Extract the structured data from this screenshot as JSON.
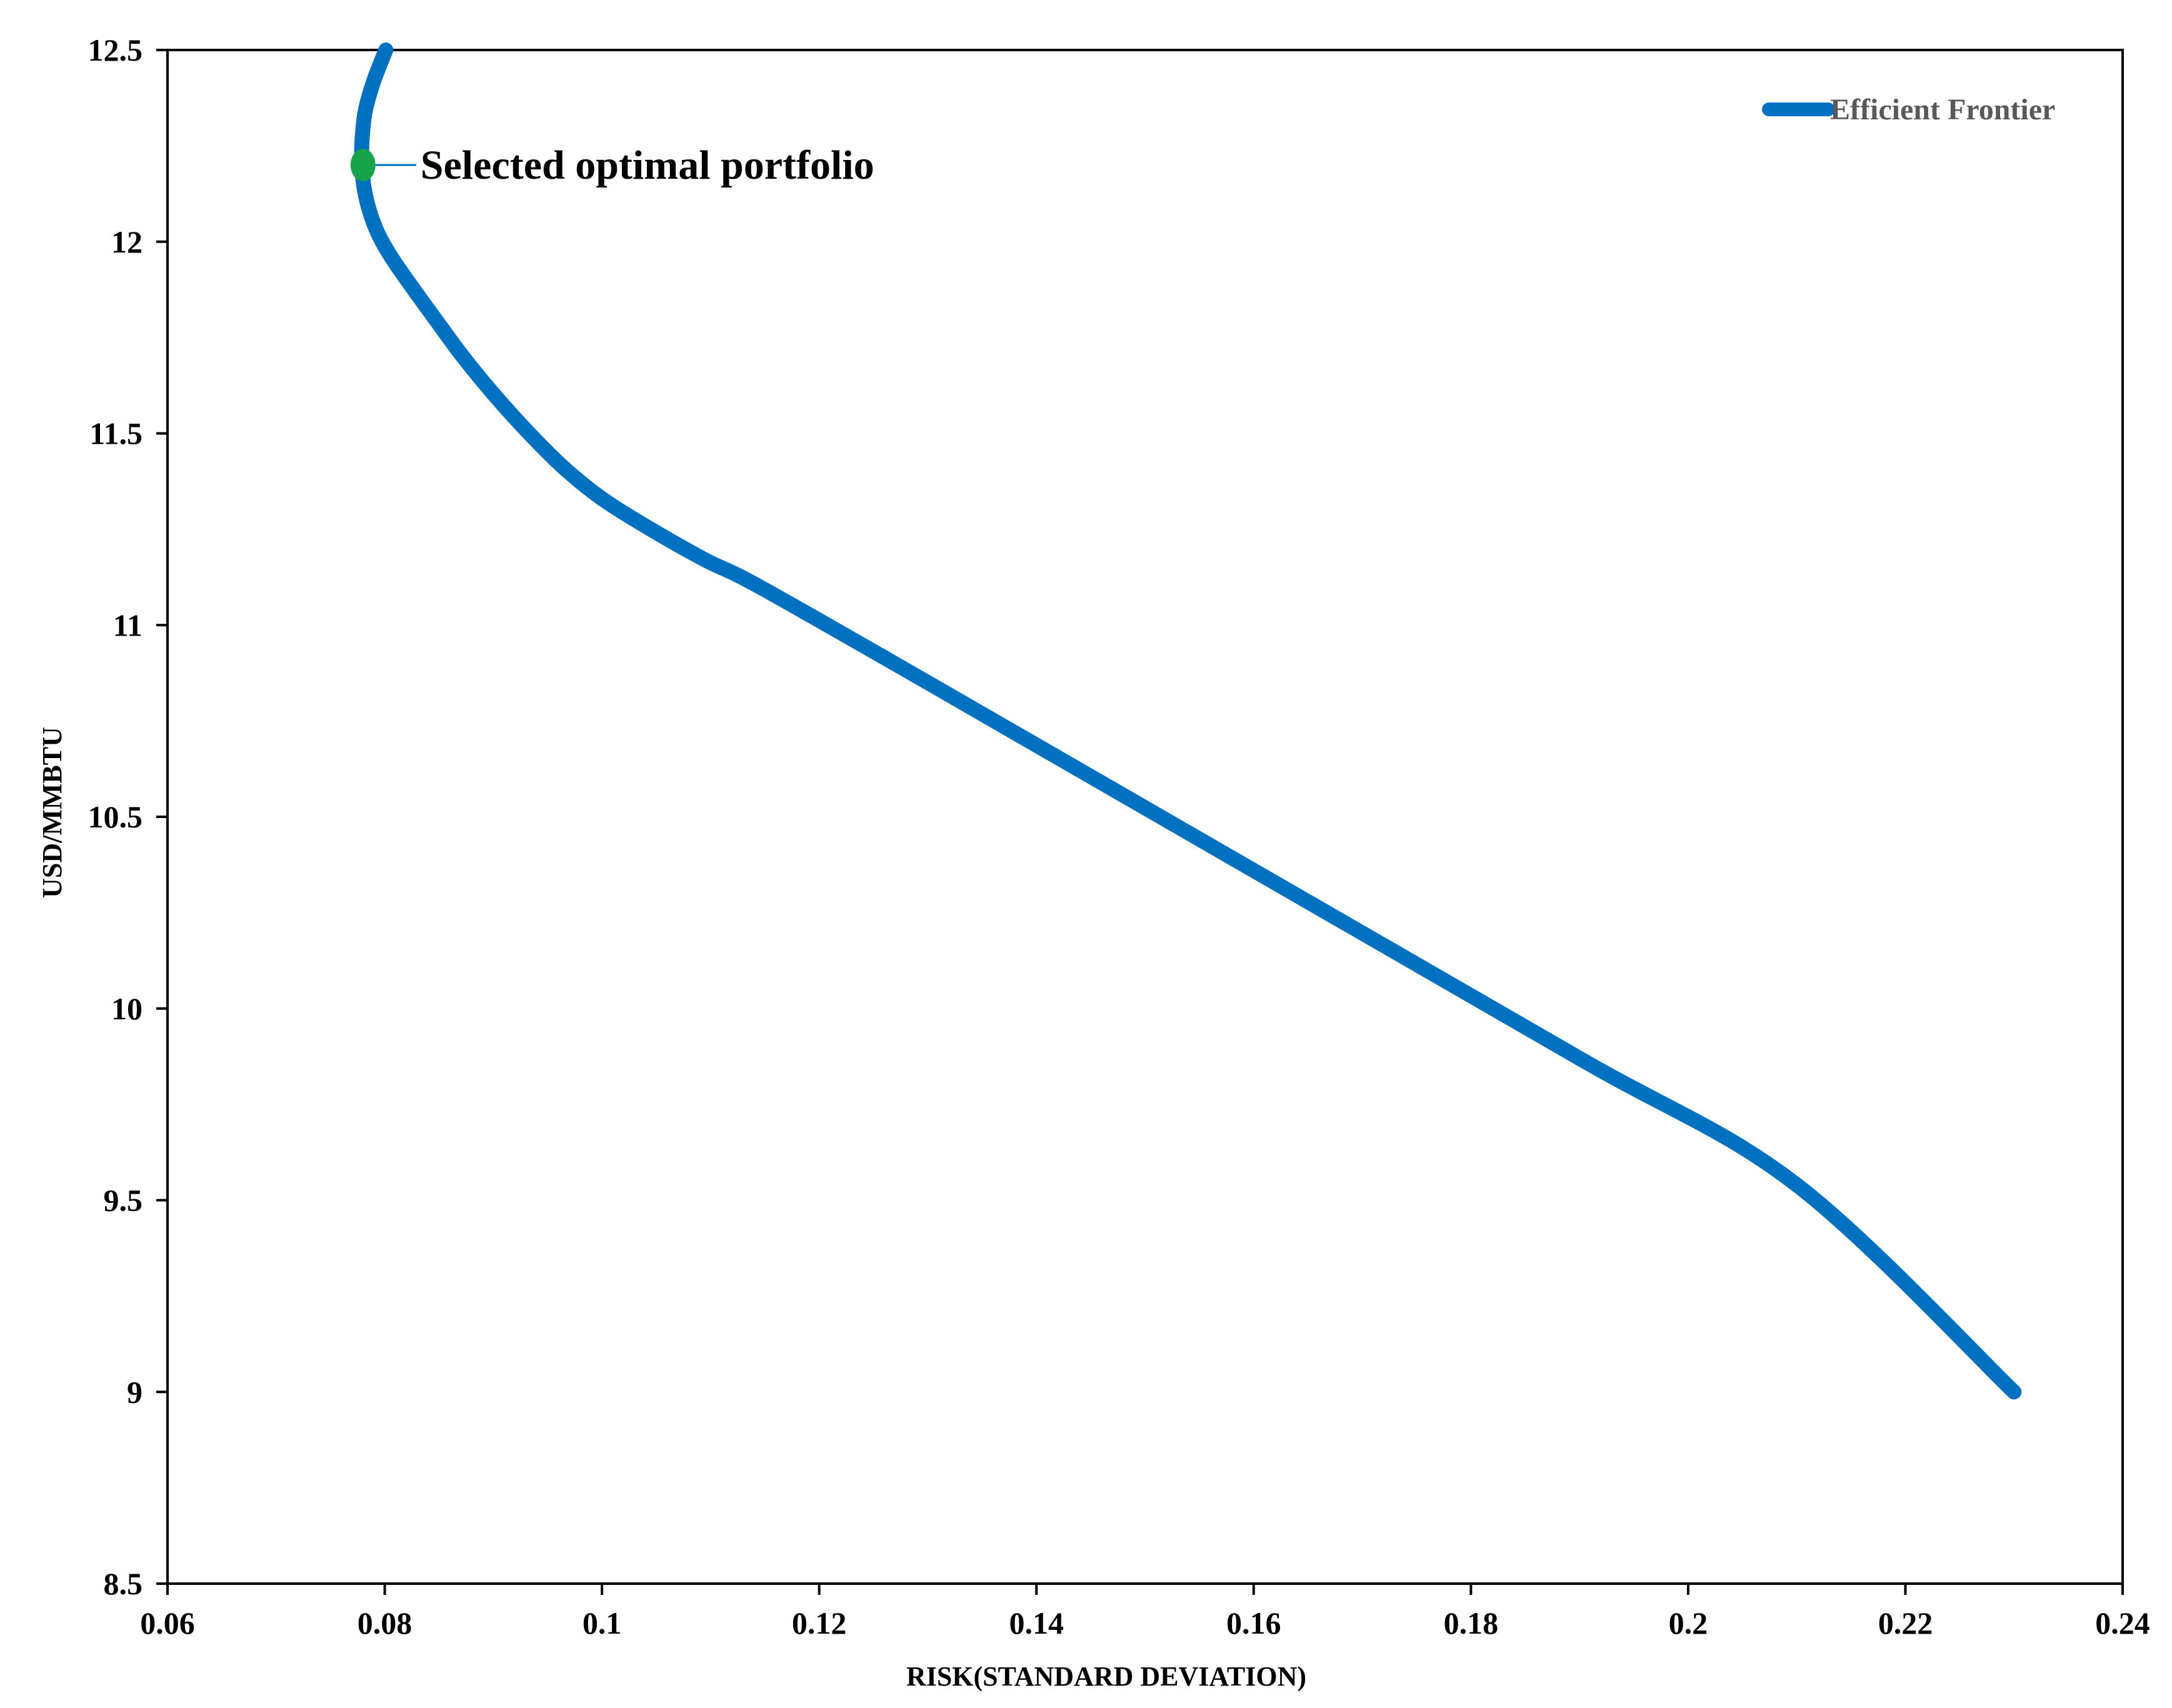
{
  "chart_data": {
    "type": "line",
    "title": "",
    "xlabel": "RISK(STANDARD DEVIATION)",
    "ylabel": "USD/MMBTU",
    "xlim": [
      0.06,
      0.24
    ],
    "ylim": [
      8.5,
      12.5
    ],
    "x_ticks": [
      0.06,
      0.08,
      0.1,
      0.12,
      0.14,
      0.16,
      0.18,
      0.2,
      0.22,
      0.24
    ],
    "x_tick_labels": [
      "0.06",
      "0.08",
      "0.1",
      "0.12",
      "0.14",
      "0.16",
      "0.18",
      "0.2",
      "0.22",
      "0.24"
    ],
    "y_ticks": [
      8.5,
      9,
      9.5,
      10,
      10.5,
      11,
      11.5,
      12,
      12.5
    ],
    "y_tick_labels": [
      "8.5",
      "9",
      "9.5",
      "10",
      "10.5",
      "11",
      "11.5",
      "12",
      "12.5"
    ],
    "grid": false,
    "legend_position": "top-right",
    "series": [
      {
        "name": "Efficient Frontier",
        "color": "#0070C0",
        "x": [
          0.0801,
          0.079,
          0.0782,
          0.0779,
          0.0779,
          0.0781,
          0.0786,
          0.0794,
          0.0806,
          0.0823,
          0.0846,
          0.0872,
          0.0901,
          0.0933,
          0.0965,
          0.1,
          0.1045,
          0.1095,
          0.1145,
          0.13,
          0.16,
          0.19,
          0.21,
          0.23
        ],
        "y": [
          12.5,
          12.42,
          12.34,
          12.26,
          12.2,
          12.14,
          12.08,
          12.02,
          11.96,
          11.89,
          11.8,
          11.7,
          11.6,
          11.5,
          11.41,
          11.33,
          11.25,
          11.17,
          11.1,
          10.85,
          10.36,
          9.87,
          9.54,
          9.0
        ]
      }
    ],
    "highlight": {
      "name": "Selected optimal portfolio",
      "x": 0.078,
      "y": 12.2,
      "color": "#16A34A"
    }
  },
  "colors": {
    "axis": "#000000",
    "line": "#0070C0",
    "marker": "#16A34A",
    "annotation_leader": "#0070C0",
    "legend_text": "#595959"
  }
}
